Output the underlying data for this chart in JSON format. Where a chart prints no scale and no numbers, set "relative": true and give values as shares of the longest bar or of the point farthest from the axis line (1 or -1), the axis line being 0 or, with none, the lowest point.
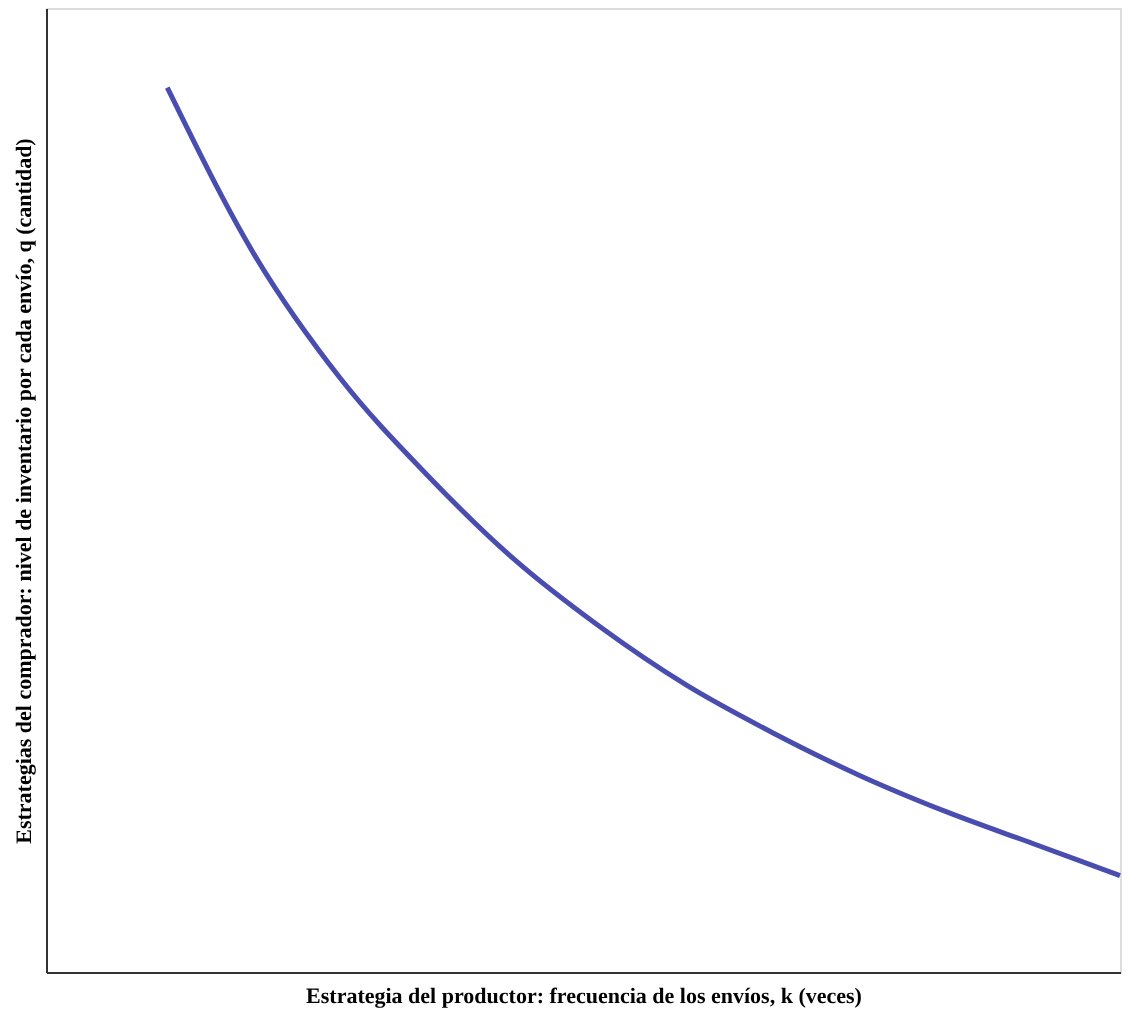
{
  "chart_data": {
    "type": "line",
    "relative": true,
    "tick_labels": false,
    "grid": false,
    "marker": "none",
    "line_style": "solid",
    "xlabel": "Estrategia del productor: frecuencia de los envíos, k (veces)",
    "ylabel": "Estrategias del comprador: nivel de inventario por cada envío, q (cantidad)",
    "categories": [
      null,
      null,
      null,
      null,
      null,
      null,
      null,
      null,
      null,
      null,
      null,
      null
    ],
    "series": [
      {
        "color": "#4a4db0",
        "values": [
          1,
          0.812,
          0.671,
          0.562,
          0.467,
          0.39,
          0.324,
          0.27,
          0.222,
          0.181,
          0.145,
          0.109
        ]
      }
    ]
  }
}
